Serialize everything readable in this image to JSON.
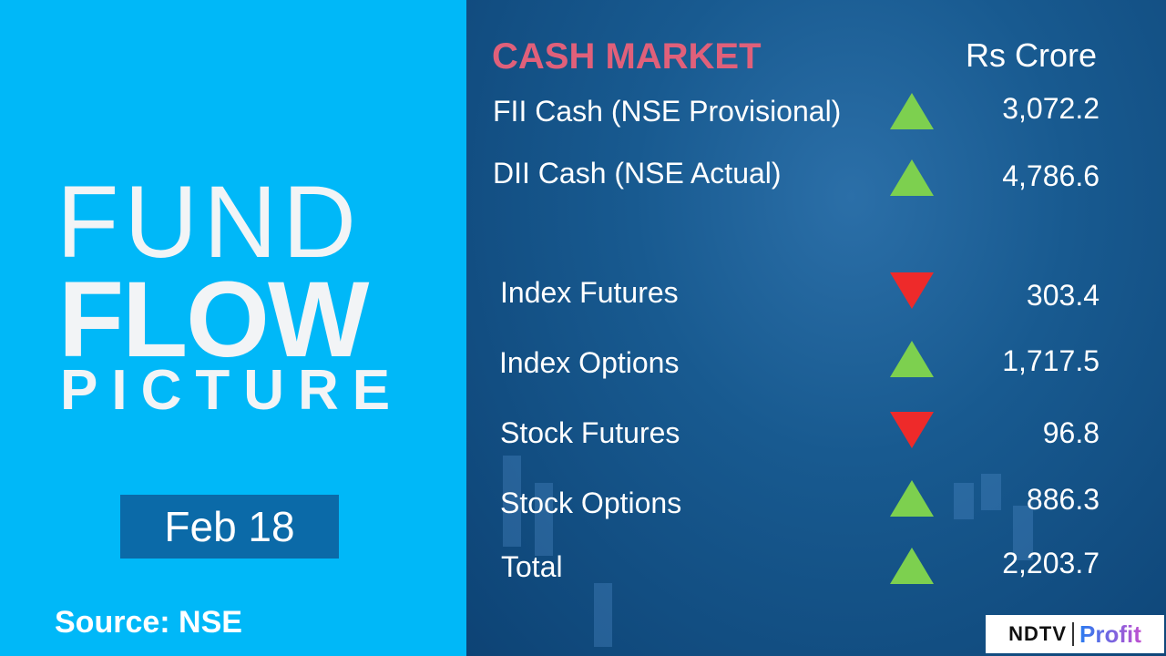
{
  "left": {
    "line1": "FUND",
    "line2": "FLOW",
    "line3": "PICTURE",
    "date": "Feb 18",
    "source": "Source: NSE"
  },
  "header": {
    "title": "CASH MARKET",
    "unit": "Rs Crore"
  },
  "rows": [
    {
      "label": "FII Cash (NSE Provisional)",
      "direction": "up",
      "value": "3,072.2"
    },
    {
      "label": "DII Cash (NSE Actual)",
      "direction": "up",
      "value": "4,786.6"
    },
    {
      "label": "Index Futures",
      "direction": "down",
      "value": "303.4"
    },
    {
      "label": "Index Options",
      "direction": "up",
      "value": "1,717.5"
    },
    {
      "label": "Stock Futures",
      "direction": "down",
      "value": "96.8"
    },
    {
      "label": "Stock Options",
      "direction": "up",
      "value": "886.3"
    },
    {
      "label": "Total",
      "direction": "up",
      "value": "2,203.7"
    }
  ],
  "logo": {
    "ndtv": "NDTV",
    "profit": "Profit"
  },
  "colors": {
    "left_bg": "#00b8f8",
    "right_bg": "#185a90",
    "title": "#e0607a",
    "up": "#7dd04f",
    "down": "#ee2a2a"
  }
}
